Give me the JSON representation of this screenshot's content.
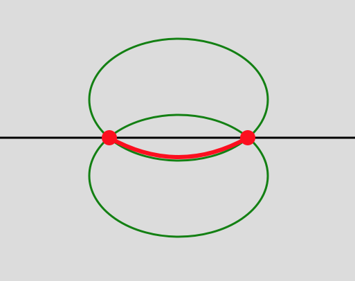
{
  "colors": {
    "background": "#dcdcdc",
    "ellipse_stroke": "#138013",
    "axis_line": "#000000",
    "highlight": "#fc0f1f"
  },
  "shapes": {
    "upper_ellipse": "ellipse",
    "lower_ellipse": "ellipse",
    "horizontal_line": "line",
    "intersection_arc": "arc",
    "intersection_points": "point"
  }
}
